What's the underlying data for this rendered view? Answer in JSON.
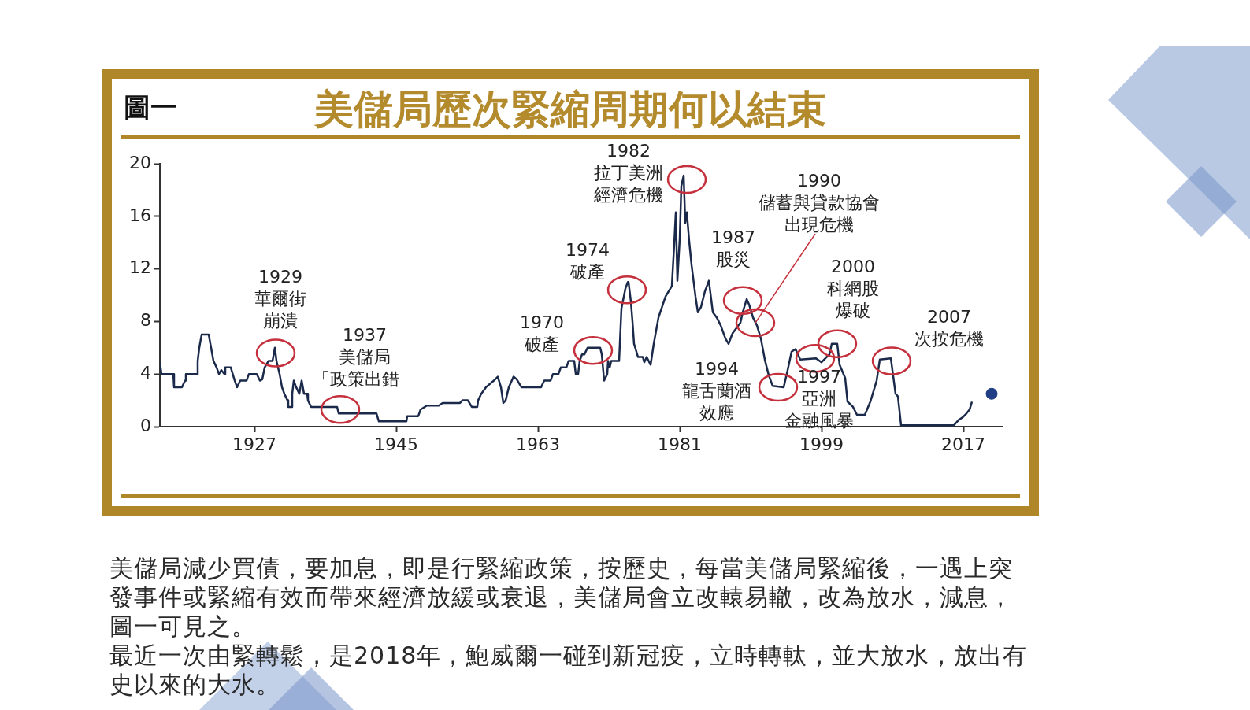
{
  "chart_data": {
    "type": "line",
    "title": "美儲局歷次緊縮周期何以結束",
    "series": [
      {
        "color": "#1b2a4a",
        "x": [
          1915.0,
          1915.2,
          1916.7,
          1916.8,
          1917.8,
          1918.2,
          1918.3,
          1919.7,
          1919.8,
          1920.0,
          1920.3,
          1921.2,
          1921.5,
          1921.8,
          1922.2,
          1922.5,
          1922.8,
          1923.2,
          1923.3,
          1924.0,
          1924.5,
          1924.8,
          1925.2,
          1926.0,
          1926.3,
          1927.3,
          1927.7,
          1928.0,
          1928.3,
          1928.8,
          1929.3,
          1929.6,
          1929.8,
          1930.2,
          1930.5,
          1930.8,
          1931.2,
          1931.3,
          1931.7,
          1931.8,
          1932.0,
          1932.3,
          1932.7,
          1933.0,
          1933.3,
          1933.7,
          1933.8,
          1934.2,
          1937.5,
          1937.7,
          1942.5,
          1942.8,
          1946.3,
          1946.4,
          1947.8,
          1948.1,
          1948.9,
          1950.4,
          1950.9,
          1953.1,
          1953.4,
          1954.1,
          1954.6,
          1955.3,
          1955.4,
          1955.8,
          1956.4,
          1957.4,
          1957.9,
          1958.3,
          1958.6,
          1958.9,
          1959.3,
          1959.9,
          1960.3,
          1960.9,
          1963.4,
          1963.8,
          1964.6,
          1964.9,
          1965.6,
          1965.9,
          1966.6,
          1966.9,
          1967.6,
          1967.8,
          1968.1,
          1968.3,
          1968.6,
          1968.9,
          1969.3,
          1970.9,
          1971.1,
          1971.4,
          1971.8,
          1971.9,
          1972.1,
          1972.3,
          1973.3,
          1973.6,
          1974.1,
          1974.4,
          1974.5,
          1974.8,
          1975.0,
          1975.2,
          1975.7,
          1976.3,
          1976.5,
          1976.8,
          1977.3,
          1977.7,
          1978.3,
          1979.2,
          1980.0,
          1980.3,
          1980.5,
          1980.7,
          1981.0,
          1981.2,
          1981.5,
          1981.7,
          1981.9,
          1982.2,
          1982.5,
          1983.0,
          1983.3,
          1983.7,
          1984.2,
          1984.7,
          1985.2,
          1985.7,
          1986.2,
          1986.8,
          1987.2,
          1987.7,
          1988.2,
          1988.7,
          1989.0,
          1989.5,
          1989.8,
          1990.3,
          1990.8,
          1991.3,
          1991.8,
          1992.3,
          1992.8,
          1994.2,
          1994.7,
          1995.2,
          1995.7,
          1996.3,
          1998.3,
          1999.0,
          2000.0,
          2000.3,
          2001.0,
          2001.3,
          2002.0,
          2002.3,
          2003.0,
          2003.5,
          2004.5,
          2005.2,
          2006.0,
          2006.4,
          2007.8,
          2008.4,
          2008.7,
          2009.1,
          2015.8,
          2016.1,
          2016.4,
          2016.9,
          2017.4,
          2017.8,
          2018.1
        ],
        "values": [
          4.9,
          4.0,
          4.0,
          3.0,
          3.0,
          3.5,
          4.0,
          4.0,
          5.0,
          6.0,
          7.0,
          7.0,
          6.0,
          5.0,
          4.5,
          4.0,
          4.3,
          4.0,
          4.5,
          4.5,
          3.5,
          3.0,
          3.5,
          3.5,
          4.0,
          4.0,
          3.5,
          3.6,
          4.5,
          5.0,
          5.0,
          6.0,
          5.0,
          4.0,
          3.0,
          2.5,
          2.0,
          1.5,
          1.5,
          2.5,
          3.5,
          3.0,
          2.5,
          3.5,
          2.5,
          2.5,
          2.0,
          1.5,
          1.5,
          1.0,
          1.0,
          0.4,
          0.4,
          0.8,
          0.8,
          1.3,
          1.6,
          1.6,
          1.8,
          1.8,
          2.0,
          2.0,
          1.5,
          1.5,
          2.0,
          2.5,
          3.0,
          3.5,
          3.8,
          3.0,
          1.8,
          2.0,
          3.0,
          3.8,
          3.6,
          3.0,
          3.0,
          3.5,
          3.5,
          4.0,
          4.0,
          4.5,
          4.5,
          5.0,
          5.0,
          4.0,
          4.0,
          5.0,
          5.5,
          5.5,
          6.0,
          6.0,
          5.5,
          3.5,
          4.0,
          5.0,
          4.5,
          5.0,
          5.0,
          9.0,
          10.5,
          11.0,
          11.0,
          9.5,
          8.0,
          6.3,
          5.3,
          5.3,
          4.9,
          5.3,
          4.7,
          6.3,
          8.3,
          9.9,
          10.7,
          13.9,
          16.3,
          11.1,
          14.3,
          18.3,
          19.1,
          15.5,
          16.3,
          14.1,
          12.3,
          9.9,
          8.7,
          9.1,
          10.3,
          11.1,
          8.7,
          8.3,
          7.7,
          6.7,
          6.3,
          7.1,
          7.5,
          7.9,
          8.7,
          9.7,
          9.3,
          8.3,
          7.7,
          6.7,
          5.1,
          3.9,
          3.1,
          3.0,
          4.3,
          5.7,
          5.9,
          5.1,
          5.2,
          4.9,
          5.5,
          6.3,
          6.3,
          4.7,
          3.7,
          1.9,
          1.5,
          0.9,
          0.9,
          1.9,
          3.5,
          5.1,
          5.2,
          2.5,
          2.3,
          0.1,
          0.1,
          0.3,
          0.5,
          0.7,
          1.0,
          1.3,
          1.9
        ]
      },
      {
        "type": "scatter",
        "color": "#1f3e85",
        "marker": "circle",
        "x": [
          2020.6
        ],
        "values": [
          2.5
        ]
      }
    ],
    "xlim": [
      1915,
      2022
    ],
    "xticks": [
      1927,
      1945,
      1963,
      1981,
      1999,
      2017
    ],
    "ylim": [
      0,
      20
    ],
    "yticks": [
      0,
      4,
      8,
      12,
      16,
      20
    ],
    "annotations": [
      "圖一",
      {
        "text": "1929\n華爾街崩潰",
        "x": 1929.7,
        "y": 5.6
      },
      {
        "text": "1937\n美儲局「政策出錯」",
        "x": 1937.9,
        "y": 1.3
      },
      {
        "text": "1970\n破產",
        "x": 1970.0,
        "y": 5.8
      },
      {
        "text": "1974\n破產",
        "x": 1974.3,
        "y": 10.4
      },
      {
        "text": "1982\n拉丁美洲經濟危機",
        "x": 1981.9,
        "y": 18.8
      },
      {
        "text": "1987\n股災",
        "x": 1989.0,
        "y": 9.6
      },
      {
        "text": "1990\n儲蓄與貸款協會出現危機",
        "x": 1990.6,
        "y": 7.9
      },
      {
        "text": "1994\n龍舌蘭酒效應",
        "x": 1993.5,
        "y": 3.0
      },
      {
        "text": "1997\n亞洲金融風暴",
        "x": 1998.2,
        "y": 5.2
      },
      {
        "text": "2000\n科網股爆破",
        "x": 2001.0,
        "y": 6.3
      },
      {
        "text": "2007\n次按危機",
        "x": 2007.9,
        "y": 5.0
      },
      "美儲局減少買債，要加息，即是行緊縮政策，按歷史，每當美儲局緊縮後，一遇上突發事件或緊縮有效而帶來經濟放緩或衰退，美儲局會立改轅易轍，改為放水，減息，圖一可見之。",
      "最近一次由緊轉鬆，是2018年，鮑威爾一碰到新冠疫，立時轉軚，並大放水，放出有史以來的大水。"
    ]
  }
}
